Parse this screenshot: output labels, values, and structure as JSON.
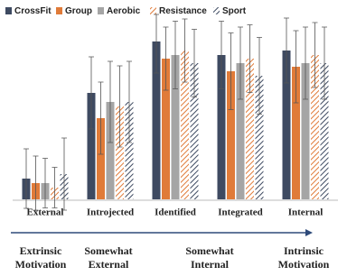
{
  "chart_data": {
    "type": "bar",
    "categories": [
      "External",
      "Introjected",
      "Identified",
      "Integrated",
      "Internal"
    ],
    "series": [
      {
        "name": "CrossFit",
        "color": "#3e4a61",
        "hatch": false,
        "values": [
          0.46,
          2.36,
          3.5,
          3.2,
          3.3
        ],
        "errors": [
          0.66,
          0.8,
          0.7,
          0.75,
          0.72
        ]
      },
      {
        "name": "Group",
        "color": "#e07b39",
        "hatch": false,
        "values": [
          0.36,
          1.8,
          3.12,
          2.84,
          2.94
        ],
        "errors": [
          0.6,
          0.8,
          0.7,
          0.85,
          0.8
        ]
      },
      {
        "name": "Aerobic",
        "color": "#a5a5a5",
        "hatch": false,
        "values": [
          0.36,
          2.16,
          3.2,
          3.02,
          3.02
        ],
        "errors": [
          0.55,
          0.9,
          0.75,
          0.8,
          0.8
        ]
      },
      {
        "name": "Resistance",
        "color": "#e07b39",
        "hatch": true,
        "values": [
          0.26,
          2.06,
          3.3,
          3.12,
          3.2
        ],
        "errors": [
          0.45,
          0.9,
          0.7,
          0.75,
          0.72
        ]
      },
      {
        "name": "Sport",
        "color": "#3e4a61",
        "hatch": true,
        "values": [
          0.56,
          2.16,
          3.02,
          2.74,
          3.02
        ],
        "errors": [
          0.8,
          0.9,
          0.75,
          0.85,
          0.8
        ]
      }
    ],
    "ylim": [
      0,
      4
    ],
    "annotations": [
      {
        "line1": "Extrinsic",
        "line2": "Motivation"
      },
      {
        "line1": "Somewhat",
        "line2": "External"
      },
      {
        "line1": "Somewhat",
        "line2": "Internal"
      },
      {
        "line1": "Intrinsic",
        "line2": "Motivation"
      }
    ]
  }
}
